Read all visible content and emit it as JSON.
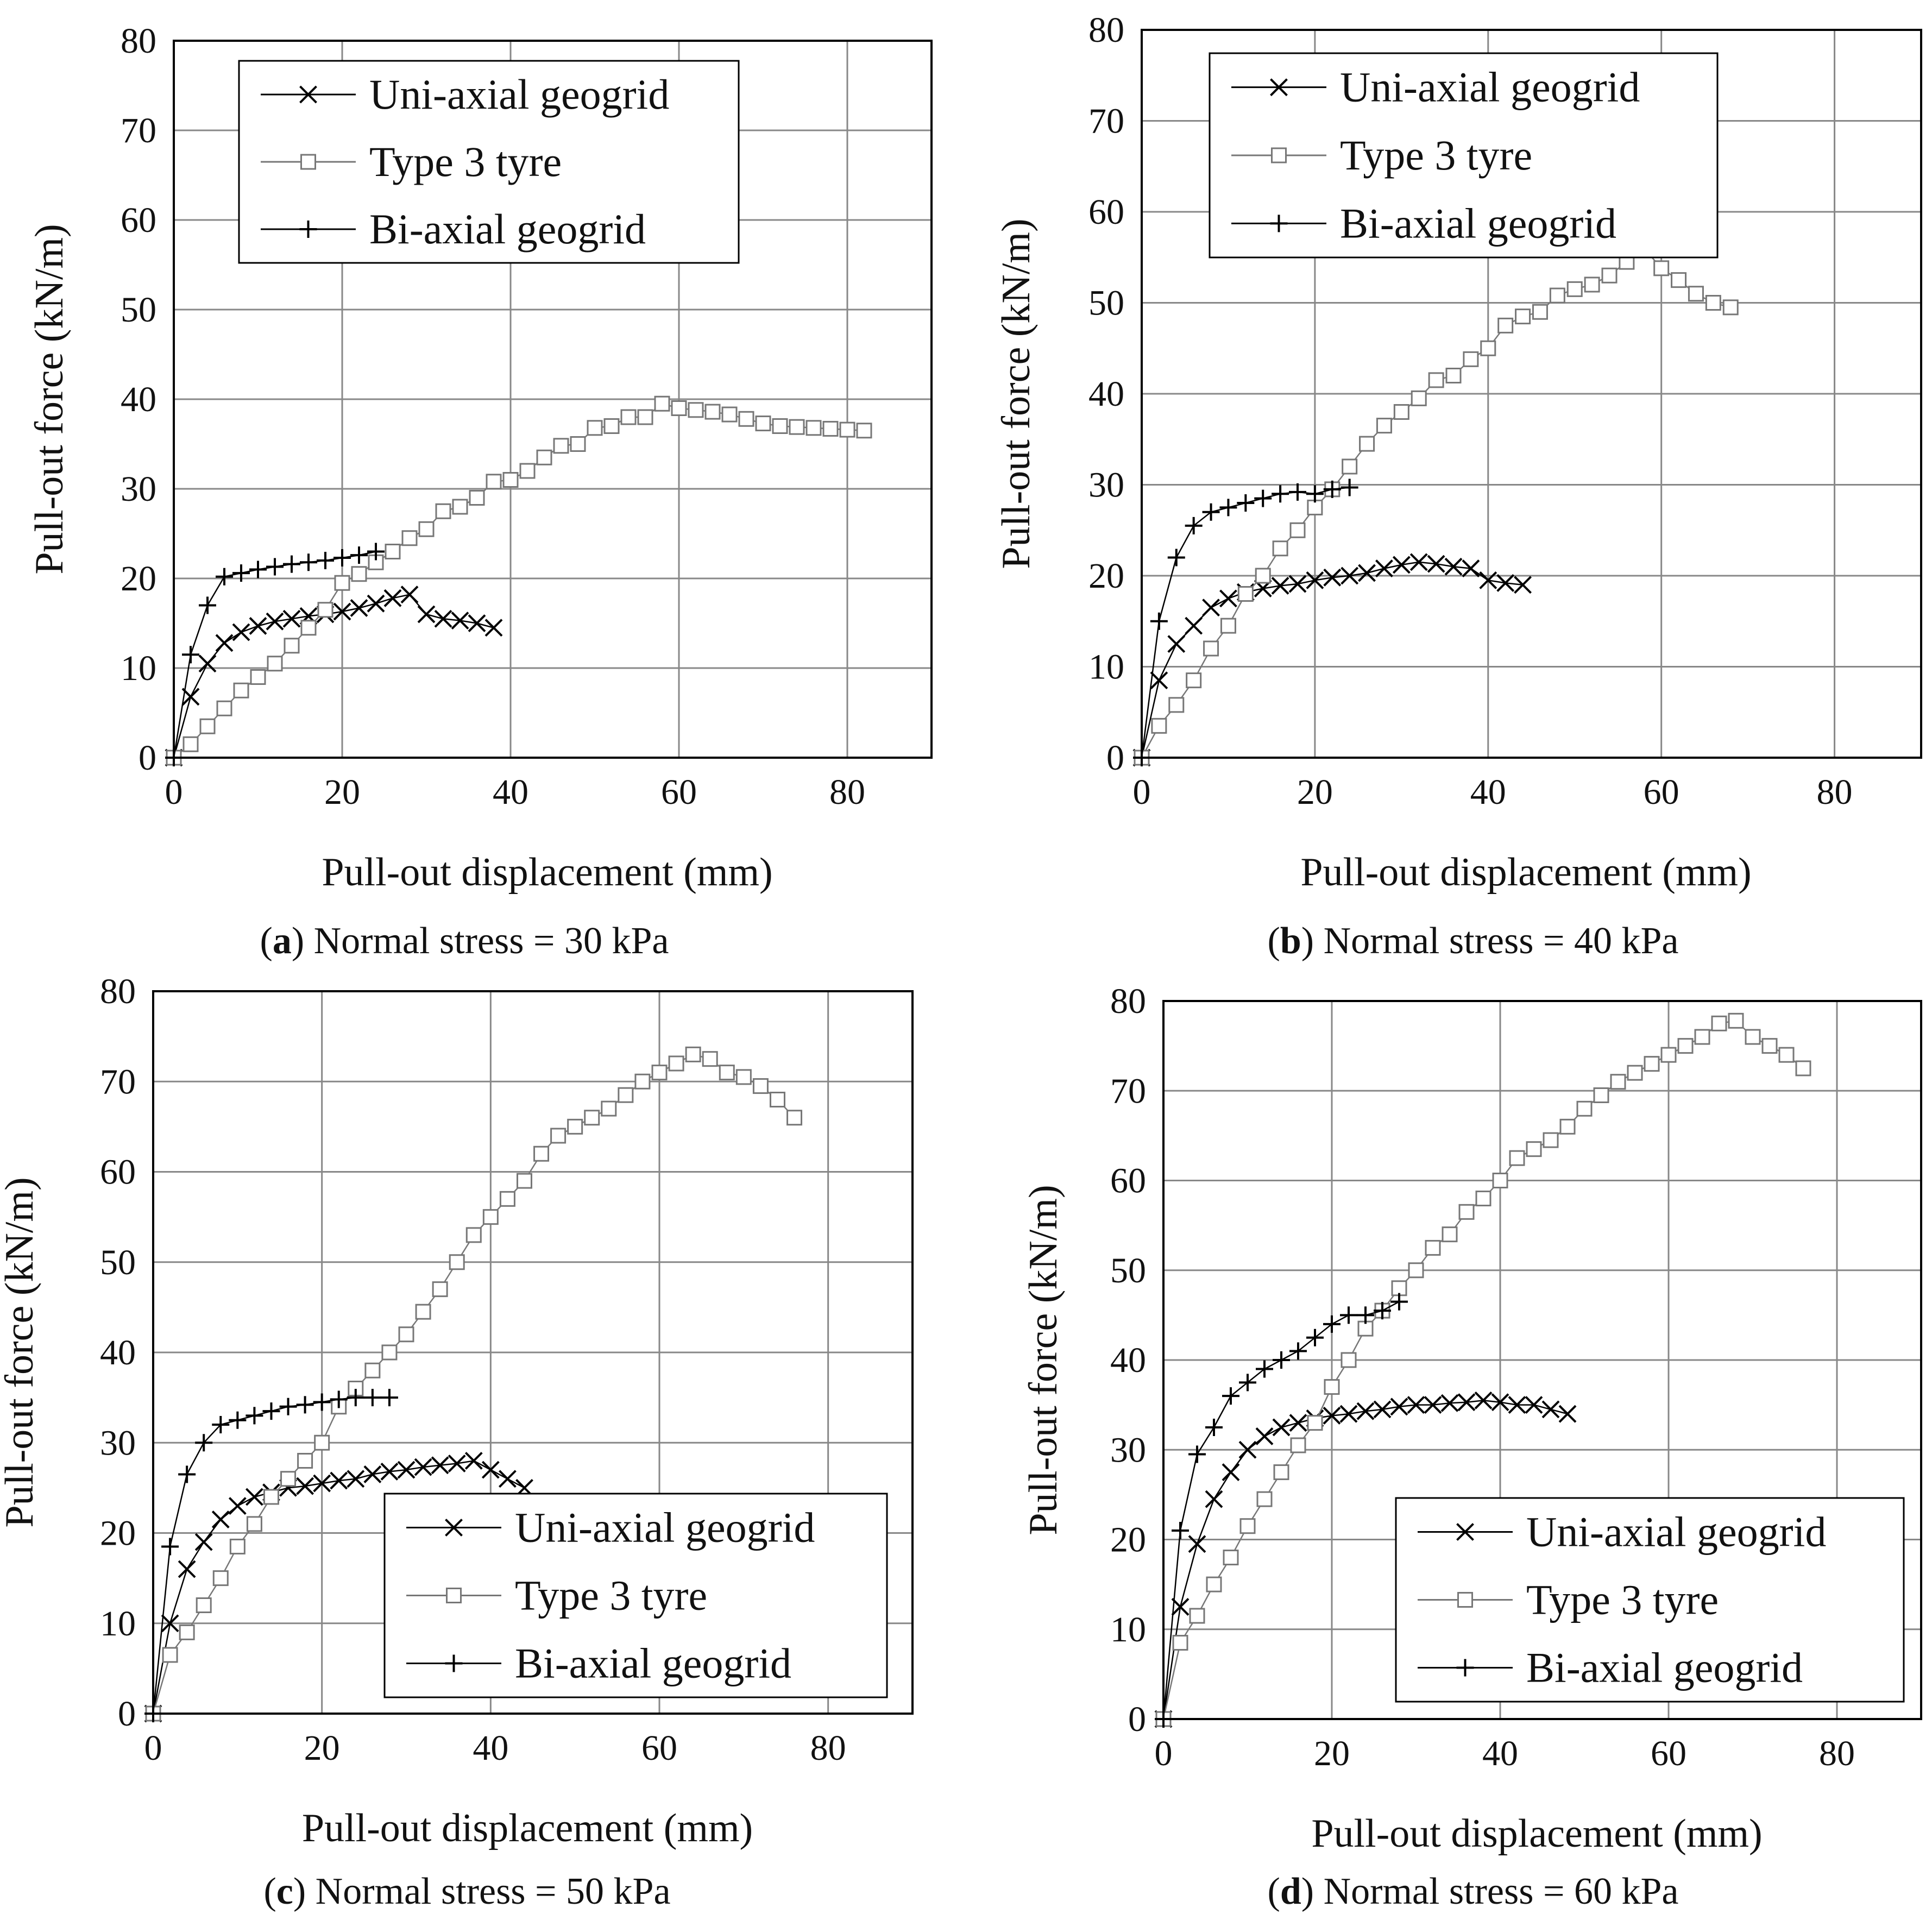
{
  "figure": {
    "panels": [
      {
        "id": "a",
        "letter": "a",
        "caption": "Normal stress = 30 kPa"
      },
      {
        "id": "b",
        "letter": "b",
        "caption": "Normal stress = 40 kPa"
      },
      {
        "id": "c",
        "letter": "c",
        "caption": "Normal stress = 50 kPa"
      },
      {
        "id": "d",
        "letter": "d",
        "caption": "Normal stress = 60 kPa"
      }
    ]
  },
  "chart_data": [
    {
      "id": "a",
      "type": "line",
      "title": "(a) Normal stress = 30 kPa",
      "xlabel": "Pull-out displacement (mm)",
      "ylabel": "Pull-out force (kN/m)",
      "xlim": [
        0,
        90
      ],
      "ylim": [
        0,
        80
      ],
      "xticks": [
        "0",
        "20",
        "40",
        "60",
        "80"
      ],
      "yticks": [
        "0",
        "10",
        "20",
        "30",
        "40",
        "50",
        "60",
        "70",
        "80"
      ],
      "grid": true,
      "legend_position": "top-left",
      "legend": [
        "Uni-axial geogrid",
        "Type 3 tyre",
        "Bi-axial geogrid"
      ],
      "series": [
        {
          "name": "Uni-axial geogrid",
          "marker": "x",
          "color": "#000000",
          "x": [
            0,
            2,
            4,
            6,
            8,
            10,
            12,
            14,
            16,
            18,
            20,
            22,
            24,
            26,
            28,
            30,
            32,
            34,
            36,
            38
          ],
          "y": [
            0,
            6.8,
            10.5,
            12.8,
            14.0,
            14.7,
            15.2,
            15.5,
            15.8,
            16.0,
            16.3,
            16.7,
            17.2,
            17.8,
            18.2,
            16.0,
            15.5,
            15.3,
            15.0,
            14.5
          ]
        },
        {
          "name": "Type 3 tyre",
          "marker": "square",
          "color": "#777777",
          "x": [
            0,
            2,
            4,
            6,
            8,
            10,
            12,
            14,
            16,
            18,
            20,
            22,
            24,
            26,
            28,
            30,
            32,
            34,
            36,
            38,
            40,
            42,
            44,
            46,
            48,
            50,
            52,
            54,
            56,
            58,
            60,
            62,
            64,
            66,
            68,
            70,
            72,
            74,
            76,
            78,
            80,
            82
          ],
          "y": [
            0,
            1.5,
            3.5,
            5.5,
            7.5,
            9.0,
            10.5,
            12.5,
            14.5,
            16.5,
            19.5,
            20.5,
            21.8,
            23.0,
            24.5,
            25.5,
            27.5,
            28.0,
            29.0,
            30.8,
            31.0,
            32.0,
            33.5,
            34.8,
            35.0,
            36.8,
            37.0,
            38.0,
            38.0,
            39.5,
            39.0,
            38.8,
            38.6,
            38.3,
            37.8,
            37.3,
            37.0,
            36.9,
            36.8,
            36.7,
            36.6,
            36.5
          ]
        },
        {
          "name": "Bi-axial geogrid",
          "marker": "plus",
          "color": "#000000",
          "x": [
            0,
            2,
            4,
            6,
            8,
            10,
            12,
            14,
            16,
            18,
            20,
            22,
            24
          ],
          "y": [
            0,
            11.5,
            17.0,
            20.2,
            20.6,
            21.0,
            21.3,
            21.6,
            21.8,
            22.0,
            22.3,
            22.6,
            23.0
          ]
        }
      ]
    },
    {
      "id": "b",
      "type": "line",
      "title": "(b) Normal stress = 40 kPa",
      "xlabel": "Pull-out displacement (mm)",
      "ylabel": "Pull-out force (kN/m)",
      "xlim": [
        0,
        90
      ],
      "ylim": [
        0,
        80
      ],
      "xticks": [
        "0",
        "20",
        "40",
        "60",
        "80"
      ],
      "yticks": [
        "0",
        "10",
        "20",
        "30",
        "40",
        "50",
        "60",
        "70",
        "80"
      ],
      "grid": true,
      "legend_position": "top-left",
      "legend": [
        "Uni-axial geogrid",
        "Type 3 tyre",
        "Bi-axial geogrid"
      ],
      "series": [
        {
          "name": "Uni-axial geogrid",
          "marker": "x",
          "color": "#000000",
          "x": [
            0,
            2,
            4,
            6,
            8,
            10,
            12,
            14,
            16,
            18,
            20,
            22,
            24,
            26,
            28,
            30,
            32,
            34,
            36,
            38,
            40,
            42,
            44
          ],
          "y": [
            0,
            8.5,
            12.5,
            14.5,
            16.5,
            17.5,
            18.2,
            18.6,
            18.9,
            19.1,
            19.5,
            19.8,
            20.0,
            20.3,
            20.8,
            21.2,
            21.5,
            21.3,
            21.0,
            20.8,
            19.5,
            19.2,
            19.0
          ]
        },
        {
          "name": "Type 3 tyre",
          "marker": "square",
          "color": "#777777",
          "x": [
            0,
            2,
            4,
            6,
            8,
            10,
            12,
            14,
            16,
            18,
            20,
            22,
            24,
            26,
            28,
            30,
            32,
            34,
            36,
            38,
            40,
            42,
            44,
            46,
            48,
            50,
            52,
            54,
            56,
            58,
            60,
            62,
            64,
            66,
            68
          ],
          "y": [
            0,
            3.5,
            5.8,
            8.5,
            12.0,
            14.5,
            18.0,
            20.0,
            23.0,
            25.0,
            27.5,
            29.5,
            32.0,
            34.5,
            36.5,
            38.0,
            39.5,
            41.5,
            42.0,
            43.8,
            45.0,
            47.5,
            48.5,
            49.0,
            50.8,
            51.5,
            52.0,
            53.0,
            54.5,
            56.0,
            53.8,
            52.5,
            51.0,
            50.0,
            49.5
          ]
        },
        {
          "name": "Bi-axial geogrid",
          "marker": "plus",
          "color": "#000000",
          "x": [
            0,
            2,
            4,
            6,
            8,
            10,
            12,
            14,
            16,
            18,
            20,
            22,
            24
          ],
          "y": [
            0,
            15.0,
            22.0,
            25.5,
            27.0,
            27.5,
            28.0,
            28.5,
            29.0,
            29.2,
            29.0,
            29.5,
            29.7
          ]
        }
      ]
    },
    {
      "id": "c",
      "type": "line",
      "title": "(c) Normal stress = 50 kPa",
      "xlabel": "Pull-out displacement (mm)",
      "ylabel": "Pull-out force (kN/m)",
      "xlim": [
        0,
        90
      ],
      "ylim": [
        0,
        80
      ],
      "xticks": [
        "0",
        "20",
        "40",
        "60",
        "80"
      ],
      "yticks": [
        "0",
        "10",
        "20",
        "30",
        "40",
        "50",
        "60",
        "70",
        "80"
      ],
      "grid": true,
      "legend_position": "bottom-right",
      "legend": [
        "Uni-axial geogrid",
        "Type 3 tyre",
        "Bi-axial geogrid"
      ],
      "series": [
        {
          "name": "Uni-axial geogrid",
          "marker": "x",
          "color": "#000000",
          "x": [
            0,
            2,
            4,
            6,
            8,
            10,
            12,
            14,
            16,
            18,
            20,
            22,
            24,
            26,
            28,
            30,
            32,
            34,
            36,
            38,
            40,
            42,
            44
          ],
          "y": [
            0,
            10.0,
            16.0,
            19.0,
            21.5,
            23.0,
            24.0,
            24.5,
            25.0,
            25.2,
            25.5,
            25.8,
            26.0,
            26.5,
            26.8,
            27.0,
            27.3,
            27.5,
            27.7,
            28.0,
            27.0,
            26.0,
            25.0
          ]
        },
        {
          "name": "Type 3 tyre",
          "marker": "square",
          "color": "#777777",
          "x": [
            0,
            2,
            4,
            6,
            8,
            10,
            12,
            14,
            16,
            18,
            20,
            22,
            24,
            26,
            28,
            30,
            32,
            34,
            36,
            38,
            40,
            42,
            44,
            46,
            48,
            50,
            52,
            54,
            56,
            58,
            60,
            62,
            64,
            66,
            68,
            70,
            72,
            74,
            76
          ],
          "y": [
            0,
            6.5,
            9.0,
            12.0,
            15.0,
            18.5,
            21.0,
            24.0,
            26.0,
            28.0,
            30.0,
            34.0,
            36.0,
            38.0,
            40.0,
            42.0,
            44.5,
            47.0,
            50.0,
            53.0,
            55.0,
            57.0,
            59.0,
            62.0,
            64.0,
            65.0,
            66.0,
            67.0,
            68.5,
            70.0,
            71.0,
            72.0,
            73.0,
            72.5,
            71.0,
            70.5,
            69.5,
            68.0,
            66.0
          ]
        },
        {
          "name": "Bi-axial geogrid",
          "marker": "plus",
          "color": "#000000",
          "x": [
            0,
            2,
            4,
            6,
            8,
            10,
            12,
            14,
            16,
            18,
            20,
            22,
            24,
            26,
            28
          ],
          "y": [
            0,
            18.5,
            26.5,
            30.0,
            32.0,
            32.5,
            33.0,
            33.5,
            34.0,
            34.2,
            34.5,
            34.8,
            35.0,
            35.0,
            35.0
          ]
        }
      ]
    },
    {
      "id": "d",
      "type": "line",
      "title": "(d) Normal stress = 60 kPa",
      "xlabel": "Pull-out displacement (mm)",
      "ylabel": "Pull-out force (kN/m)",
      "xlim": [
        0,
        90
      ],
      "ylim": [
        0,
        80
      ],
      "xticks": [
        "0",
        "20",
        "40",
        "60",
        "80"
      ],
      "yticks": [
        "0",
        "10",
        "20",
        "30",
        "40",
        "50",
        "60",
        "70",
        "80"
      ],
      "grid": true,
      "legend_position": "bottom-right",
      "legend": [
        "Uni-axial geogrid",
        "Type 3 tyre",
        "Bi-axial geogrid"
      ],
      "series": [
        {
          "name": "Uni-axial geogrid",
          "marker": "x",
          "color": "#000000",
          "x": [
            0,
            2,
            4,
            6,
            8,
            10,
            12,
            14,
            16,
            18,
            20,
            22,
            24,
            26,
            28,
            30,
            32,
            34,
            36,
            38,
            40,
            42,
            44,
            46,
            48
          ],
          "y": [
            0,
            12.5,
            19.5,
            24.5,
            27.5,
            30.0,
            31.5,
            32.5,
            33.0,
            33.5,
            33.8,
            34.0,
            34.3,
            34.5,
            34.8,
            35.0,
            35.0,
            35.2,
            35.3,
            35.5,
            35.3,
            35.0,
            35.0,
            34.5,
            34.0
          ]
        },
        {
          "name": "Type 3 tyre",
          "marker": "square",
          "color": "#777777",
          "x": [
            0,
            2,
            4,
            6,
            8,
            10,
            12,
            14,
            16,
            18,
            20,
            22,
            24,
            26,
            28,
            30,
            32,
            34,
            36,
            38,
            40,
            42,
            44,
            46,
            48,
            50,
            52,
            54,
            56,
            58,
            60,
            62,
            64,
            66,
            68,
            70,
            72,
            74,
            76
          ],
          "y": [
            0,
            8.5,
            11.5,
            15.0,
            18.0,
            21.5,
            24.5,
            27.5,
            30.5,
            33.0,
            37.0,
            40.0,
            43.5,
            45.5,
            48.0,
            50.0,
            52.5,
            54.0,
            56.5,
            58.0,
            60.0,
            62.5,
            63.5,
            64.5,
            66.0,
            68.0,
            69.5,
            71.0,
            72.0,
            73.0,
            74.0,
            75.0,
            76.0,
            77.5,
            77.8,
            76.0,
            75.0,
            74.0,
            72.5
          ]
        },
        {
          "name": "Bi-axial geogrid",
          "marker": "plus",
          "color": "#000000",
          "x": [
            0,
            2,
            4,
            6,
            8,
            10,
            12,
            14,
            16,
            18,
            20,
            22,
            24,
            26,
            28
          ],
          "y": [
            0,
            21.0,
            29.5,
            32.5,
            36.0,
            37.5,
            39.0,
            40.0,
            41.0,
            42.5,
            44.0,
            45.0,
            45.0,
            45.5,
            46.5
          ]
        }
      ]
    }
  ]
}
